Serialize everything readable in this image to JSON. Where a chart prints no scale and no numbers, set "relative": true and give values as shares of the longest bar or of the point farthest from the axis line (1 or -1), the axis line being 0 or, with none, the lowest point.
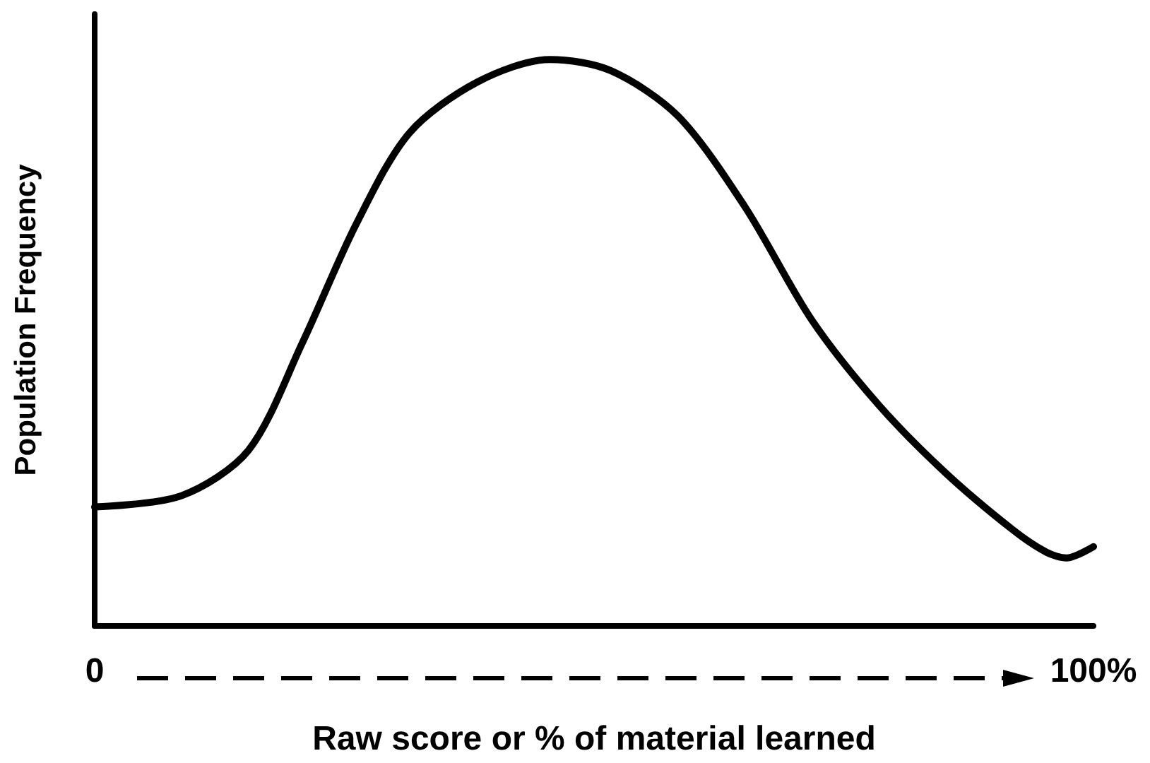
{
  "chart_data": {
    "type": "line",
    "relative": true,
    "xlabel": "Raw score or % of material learned",
    "ylabel": "Population Frequency",
    "x": [
      0,
      8.7,
      15.4,
      20.8,
      26.2,
      31.5,
      38.3,
      45.6,
      51.7,
      58.4,
      65.1,
      71.8,
      78.5,
      85.2,
      91.9,
      95.3,
      97.3,
      100
    ],
    "values": [
      0.21,
      0.23,
      0.31,
      0.5,
      0.71,
      0.87,
      0.96,
      1,
      0.98,
      0.9,
      0.74,
      0.54,
      0.39,
      0.27,
      0.17,
      0.13,
      0.12,
      0.14
    ],
    "color": "#000000",
    "xlim": [
      0,
      100
    ],
    "xticks": [
      0,
      {
        "value": 100,
        "label": "100%"
      }
    ],
    "marker": "none",
    "line_style": "solid"
  }
}
